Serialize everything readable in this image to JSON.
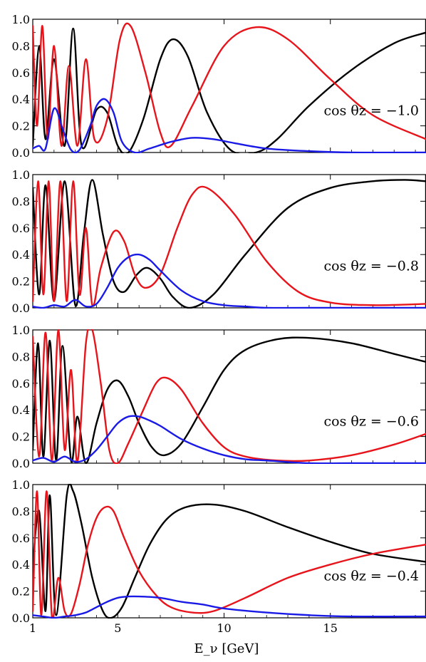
{
  "chart_data": {
    "type": "line",
    "shared_xlabel": "E_ν [GeV]",
    "xlim": [
      1,
      19.5
    ],
    "x_ticks": [
      1,
      5,
      10,
      15
    ],
    "ylim": [
      0,
      1
    ],
    "y_ticks": [
      "0.0",
      "0.2",
      "0.4",
      "0.6",
      "0.8",
      "1.0"
    ],
    "series_colors": [
      "#000000",
      "#e8141b",
      "#1a1ae6"
    ],
    "panels": [
      {
        "annotation": "cos θz = −1.0",
        "series": [
          {
            "color": "#000000",
            "x": [
              1.0,
              1.3,
              1.6,
              2.0,
              2.5,
              2.9,
              3.3,
              4.0,
              4.5,
              5.0,
              5.5,
              6.2,
              7.0,
              7.6,
              8.3,
              9.2,
              10.3,
              11.5,
              12.5,
              14.0,
              16.0,
              18.0,
              19.5
            ],
            "y": [
              0.05,
              0.8,
              0.1,
              0.7,
              0.05,
              0.93,
              0.05,
              0.32,
              0.3,
              0.05,
              0.0,
              0.25,
              0.7,
              0.85,
              0.72,
              0.3,
              0.02,
              0.0,
              0.1,
              0.35,
              0.62,
              0.82,
              0.9
            ]
          },
          {
            "color": "#e8141b",
            "x": [
              1.0,
              1.2,
              1.45,
              1.7,
              2.0,
              2.35,
              2.7,
              3.1,
              3.5,
              3.9,
              4.5,
              5.1,
              5.6,
              6.3,
              7.0,
              7.5,
              8.5,
              10.0,
              11.5,
              13.0,
              15.0,
              17.0,
              19.5
            ],
            "y": [
              0.95,
              0.2,
              0.95,
              0.1,
              0.8,
              0.05,
              0.65,
              0.05,
              0.7,
              0.1,
              0.25,
              0.85,
              0.95,
              0.6,
              0.15,
              0.05,
              0.35,
              0.8,
              0.94,
              0.85,
              0.55,
              0.28,
              0.1
            ]
          },
          {
            "color": "#1a1ae6",
            "x": [
              1.0,
              1.3,
              1.6,
              2.0,
              2.4,
              2.8,
              3.2,
              3.7,
              4.0,
              4.4,
              4.8,
              5.2,
              5.8,
              6.5,
              7.5,
              8.5,
              9.5,
              10.5,
              12.0,
              14.0,
              16.0,
              19.5
            ],
            "y": [
              0.03,
              0.05,
              0.03,
              0.33,
              0.18,
              0.02,
              0.02,
              0.2,
              0.35,
              0.4,
              0.3,
              0.08,
              0.0,
              0.03,
              0.08,
              0.11,
              0.1,
              0.07,
              0.03,
              0.01,
              0.0,
              0.0
            ]
          }
        ]
      },
      {
        "annotation": "cos θz = −0.8",
        "series": [
          {
            "color": "#000000",
            "x": [
              1.0,
              1.3,
              1.6,
              2.0,
              2.5,
              3.0,
              3.4,
              3.8,
              4.3,
              4.8,
              5.3,
              5.9,
              6.4,
              7.0,
              7.6,
              8.4,
              9.5,
              11.0,
              13.0,
              15.0,
              17.0,
              18.5,
              19.5
            ],
            "y": [
              0.9,
              0.1,
              0.92,
              0.05,
              0.95,
              0.02,
              0.55,
              0.96,
              0.55,
              0.2,
              0.12,
              0.25,
              0.3,
              0.22,
              0.08,
              0.0,
              0.1,
              0.4,
              0.75,
              0.9,
              0.95,
              0.96,
              0.95
            ]
          },
          {
            "color": "#e8141b",
            "x": [
              1.0,
              1.25,
              1.5,
              1.75,
              2.0,
              2.3,
              2.6,
              2.9,
              3.2,
              3.5,
              3.8,
              4.2,
              4.8,
              5.3,
              5.8,
              6.3,
              7.0,
              7.8,
              8.5,
              9.2,
              10.5,
              12.0,
              13.5,
              15.0,
              17.0,
              19.5
            ],
            "y": [
              0.05,
              0.95,
              0.1,
              0.95,
              0.05,
              0.95,
              0.05,
              0.95,
              0.1,
              0.6,
              0.02,
              0.3,
              0.57,
              0.5,
              0.25,
              0.15,
              0.25,
              0.6,
              0.85,
              0.9,
              0.7,
              0.35,
              0.12,
              0.04,
              0.02,
              0.03
            ]
          },
          {
            "color": "#1a1ae6",
            "x": [
              1.0,
              1.5,
              2.0,
              2.5,
              3.0,
              3.5,
              4.0,
              4.5,
              5.0,
              5.5,
              6.0,
              6.5,
              7.0,
              8.0,
              9.0,
              10.0,
              11.0,
              12.0,
              14.0,
              19.5
            ],
            "y": [
              0.01,
              0.0,
              0.02,
              0.01,
              0.06,
              0.01,
              0.03,
              0.15,
              0.3,
              0.38,
              0.4,
              0.36,
              0.28,
              0.13,
              0.05,
              0.02,
              0.01,
              0.0,
              0.0,
              0.0
            ]
          }
        ]
      },
      {
        "annotation": "cos θz = −0.6",
        "series": [
          {
            "color": "#000000",
            "x": [
              1.0,
              1.25,
              1.5,
              1.8,
              2.1,
              2.4,
              2.8,
              3.1,
              3.5,
              4.0,
              4.5,
              5.0,
              5.5,
              6.0,
              6.6,
              7.2,
              8.0,
              9.0,
              10.0,
              11.0,
              12.5,
              14.0,
              16.0,
              18.0,
              19.5
            ],
            "y": [
              0.1,
              0.9,
              0.05,
              0.92,
              0.02,
              0.88,
              0.02,
              0.35,
              0.0,
              0.3,
              0.55,
              0.62,
              0.5,
              0.3,
              0.12,
              0.06,
              0.15,
              0.42,
              0.7,
              0.85,
              0.93,
              0.94,
              0.9,
              0.82,
              0.76
            ]
          },
          {
            "color": "#e8141b",
            "x": [
              1.0,
              1.3,
              1.6,
              1.9,
              2.2,
              2.5,
              2.8,
              3.1,
              3.5,
              3.8,
              4.2,
              4.6,
              5.0,
              5.5,
              6.2,
              6.8,
              7.3,
              8.0,
              9.0,
              10.0,
              11.0,
              12.5,
              14.0,
              16.0,
              18.0,
              19.5
            ],
            "y": [
              0.95,
              0.05,
              0.98,
              0.02,
              1.0,
              0.1,
              0.7,
              0.01,
              0.9,
              1.0,
              0.6,
              0.1,
              0.0,
              0.15,
              0.4,
              0.6,
              0.64,
              0.55,
              0.3,
              0.12,
              0.05,
              0.02,
              0.02,
              0.06,
              0.14,
              0.22
            ]
          },
          {
            "color": "#1a1ae6",
            "x": [
              1.0,
              1.5,
              2.0,
              2.5,
              3.0,
              3.5,
              4.0,
              4.5,
              5.0,
              5.5,
              6.0,
              6.5,
              7.0,
              8.0,
              9.0,
              10.0,
              11.0,
              12.0,
              14.0,
              16.0,
              19.5
            ],
            "y": [
              0.02,
              0.04,
              0.01,
              0.05,
              0.01,
              0.03,
              0.1,
              0.2,
              0.3,
              0.35,
              0.35,
              0.32,
              0.28,
              0.18,
              0.11,
              0.06,
              0.03,
              0.02,
              0.0,
              0.0,
              0.0
            ]
          }
        ]
      },
      {
        "annotation": "cos θz = −0.4",
        "series": [
          {
            "color": "#000000",
            "x": [
              1.0,
              1.3,
              1.6,
              1.8,
              2.1,
              2.6,
              2.9,
              3.3,
              3.8,
              4.3,
              4.7,
              5.2,
              5.8,
              6.5,
              7.3,
              8.2,
              9.5,
              11.0,
              13.0,
              15.0,
              17.0,
              19.5
            ],
            "y": [
              0.4,
              0.8,
              0.05,
              0.92,
              0.02,
              0.92,
              0.95,
              0.7,
              0.3,
              0.05,
              0.0,
              0.08,
              0.3,
              0.55,
              0.74,
              0.83,
              0.85,
              0.8,
              0.68,
              0.57,
              0.48,
              0.42
            ]
          },
          {
            "color": "#e8141b",
            "x": [
              1.0,
              1.2,
              1.4,
              1.65,
              1.9,
              2.2,
              2.5,
              2.8,
              3.2,
              3.6,
              4.0,
              4.4,
              4.8,
              5.3,
              6.0,
              6.8,
              7.5,
              8.5,
              9.5,
              11.0,
              13.0,
              15.0,
              17.0,
              19.5
            ],
            "y": [
              0.05,
              0.95,
              0.02,
              0.95,
              0.01,
              0.3,
              0.05,
              0.03,
              0.25,
              0.55,
              0.75,
              0.83,
              0.8,
              0.6,
              0.35,
              0.17,
              0.08,
              0.04,
              0.05,
              0.15,
              0.3,
              0.4,
              0.48,
              0.55
            ]
          },
          {
            "color": "#1a1ae6",
            "x": [
              1.0,
              1.5,
              2.0,
              2.5,
              3.0,
              3.5,
              4.0,
              4.5,
              5.0,
              5.5,
              6.0,
              7.0,
              8.0,
              9.0,
              10.0,
              12.0,
              14.0,
              16.0,
              19.5
            ],
            "y": [
              0.02,
              0.01,
              0.0,
              0.01,
              0.02,
              0.04,
              0.08,
              0.12,
              0.15,
              0.16,
              0.16,
              0.15,
              0.12,
              0.1,
              0.07,
              0.04,
              0.02,
              0.01,
              0.01
            ]
          }
        ]
      }
    ]
  }
}
